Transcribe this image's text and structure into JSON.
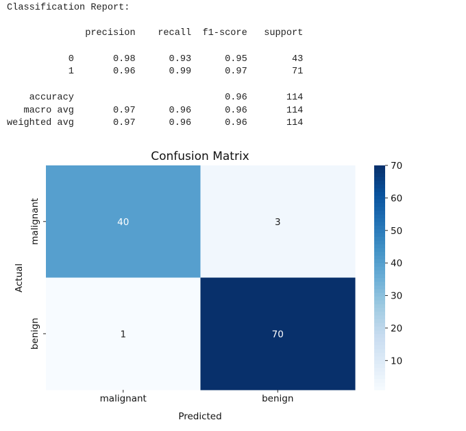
{
  "report": {
    "title": "Classification Report:",
    "headers": [
      "precision",
      "recall",
      "f1-score",
      "support"
    ],
    "rows": [
      {
        "label": "0",
        "values": [
          "0.98",
          "0.93",
          "0.95",
          "43"
        ]
      },
      {
        "label": "1",
        "values": [
          "0.96",
          "0.99",
          "0.97",
          "71"
        ]
      },
      null,
      {
        "label": "accuracy",
        "values": [
          "",
          "",
          "0.96",
          "114"
        ]
      },
      {
        "label": "macro avg",
        "values": [
          "0.97",
          "0.96",
          "0.96",
          "114"
        ]
      },
      {
        "label": "weighted avg",
        "values": [
          "0.97",
          "0.96",
          "0.96",
          "114"
        ]
      }
    ]
  },
  "chart_data": {
    "type": "heatmap",
    "title": "Confusion Matrix",
    "xlabel": "Predicted",
    "ylabel": "Actual",
    "x_categories": [
      "malignant",
      "benign"
    ],
    "y_categories": [
      "malignant",
      "benign"
    ],
    "values": [
      [
        40,
        3
      ],
      [
        1,
        70
      ]
    ],
    "colormap": "Blues",
    "colorbar": {
      "min": 1,
      "max": 70,
      "ticks": [
        10,
        20,
        30,
        40,
        50,
        60,
        70
      ]
    },
    "colors": {
      "light": "#f7fbff",
      "dark": "#08306b"
    }
  }
}
